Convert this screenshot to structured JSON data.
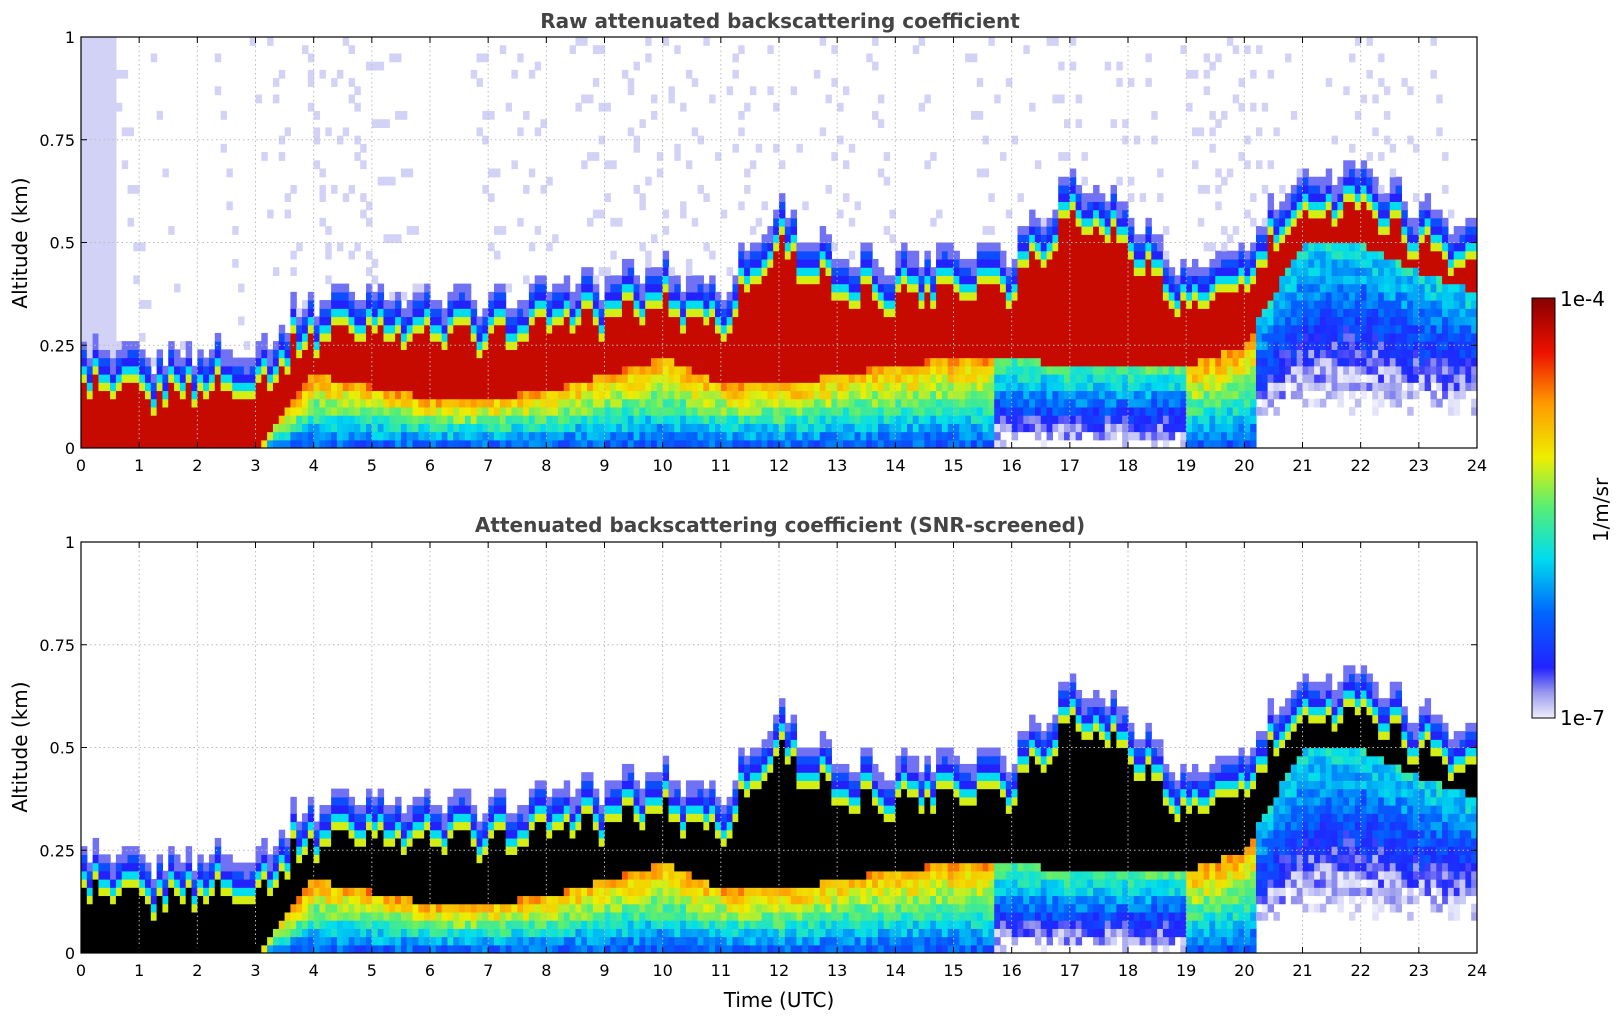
{
  "chart_data": [
    {
      "type": "heatmap",
      "title": "Raw attenuated backscattering coefficient",
      "xlabel": "",
      "ylabel": "Altitude (km)",
      "xlim": [
        0,
        24
      ],
      "ylim": [
        0,
        1
      ],
      "xticks": [
        0,
        1,
        2,
        3,
        4,
        5,
        6,
        7,
        8,
        9,
        10,
        11,
        12,
        13,
        14,
        15,
        16,
        17,
        18,
        19,
        20,
        21,
        22,
        23,
        24
      ],
      "yticks": [
        0,
        0.25,
        0.5,
        0.75,
        1
      ],
      "ytick_labels": [
        "0",
        "0.25",
        "0.5",
        "0.75",
        "1"
      ],
      "grid": true,
      "layer_top_km_by_hour": [
        0.2,
        0.18,
        0.2,
        0.2,
        0.33,
        0.35,
        0.33,
        0.32,
        0.35,
        0.37,
        0.4,
        0.35,
        0.55,
        0.42,
        0.42,
        0.45,
        0.45,
        0.62,
        0.55,
        0.38,
        0.45,
        0.62,
        0.65,
        0.55,
        0.5
      ],
      "cloud_base_km_by_hour": [
        0.0,
        0.0,
        0.0,
        0.0,
        0.18,
        0.15,
        0.12,
        0.12,
        0.14,
        0.18,
        0.22,
        0.16,
        0.15,
        0.18,
        0.2,
        0.22,
        0.22,
        0.2,
        0.2,
        0.2,
        0.25,
        0.5,
        0.5,
        0.43,
        0.38
      ]
    },
    {
      "type": "heatmap",
      "title": "Attenuated backscattering coefficient (SNR-screened)",
      "xlabel": "Time (UTC)",
      "ylabel": "Altitude (km)",
      "xlim": [
        0,
        24
      ],
      "ylim": [
        0,
        1
      ],
      "xticks": [
        0,
        1,
        2,
        3,
        4,
        5,
        6,
        7,
        8,
        9,
        10,
        11,
        12,
        13,
        14,
        15,
        16,
        17,
        18,
        19,
        20,
        21,
        22,
        23,
        24
      ],
      "yticks": [
        0,
        0.25,
        0.5,
        0.75,
        1
      ],
      "ytick_labels": [
        "0",
        "0.25",
        "0.5",
        "0.75",
        "1"
      ],
      "grid": true,
      "saturated_color": "#000000"
    }
  ],
  "colorbar": {
    "label": "1/m/sr",
    "min_label": "1e-7",
    "max_label": "1e-4",
    "scale": "log",
    "min": 1e-07,
    "max": 0.0001
  },
  "colors": {
    "title_text": "#444444",
    "grid": "#bbbbbb",
    "colormap": [
      "#e6e6fa",
      "#0000ff",
      "#00ffff",
      "#ffff00",
      "#ff7f00",
      "#ff0000",
      "#7f0000"
    ]
  }
}
